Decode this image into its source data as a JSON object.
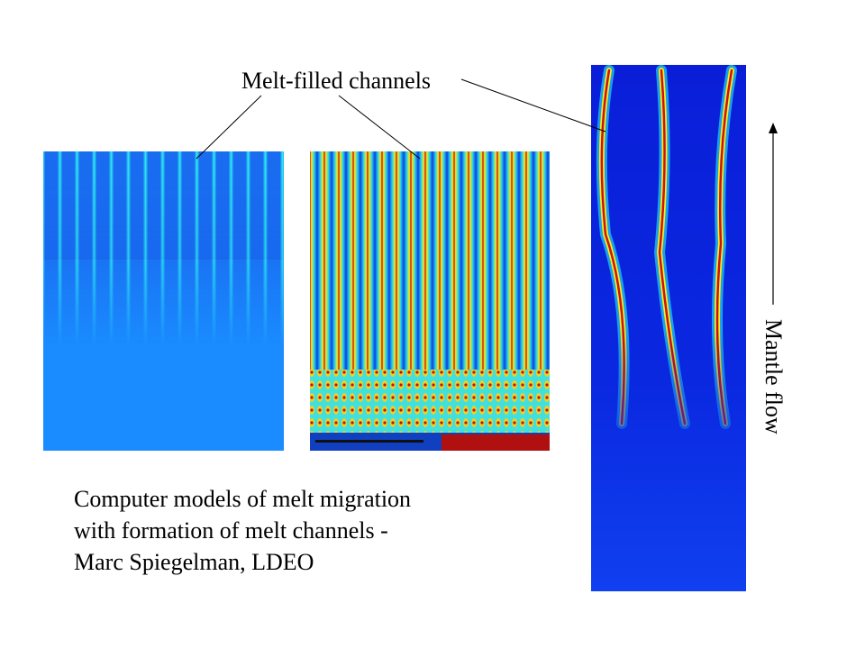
{
  "label": "Melt-filled channels",
  "caption": [
    "Computer models of melt migration",
    "with formation of melt channels -",
    "Marc Spiegelman, LDEO"
  ],
  "axis_label": "Mantle flow"
}
